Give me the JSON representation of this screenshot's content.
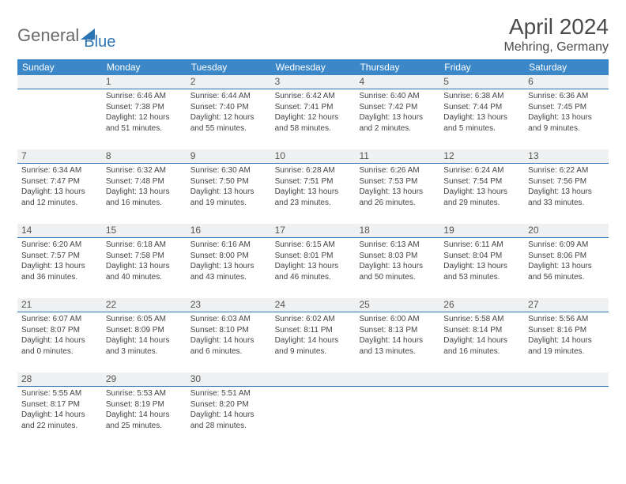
{
  "logo": {
    "part1": "General",
    "part2": "Blue"
  },
  "title": "April 2024",
  "location": "Mehring, Germany",
  "colors": {
    "header_bg": "#3b87c8",
    "header_text": "#ffffff",
    "daynum_bg": "#eef0f2",
    "daynum_border": "#2d74b5",
    "text": "#444444",
    "logo_blue": "#2d74b5",
    "background": "#ffffff"
  },
  "fonts": {
    "title_pt": 28,
    "location_pt": 16,
    "head_pt": 12,
    "daynum_pt": 12,
    "body_pt": 10
  },
  "daynames": [
    "Sunday",
    "Monday",
    "Tuesday",
    "Wednesday",
    "Thursday",
    "Friday",
    "Saturday"
  ],
  "weeks": [
    {
      "nums": [
        "",
        "1",
        "2",
        "3",
        "4",
        "5",
        "6"
      ],
      "cells": [
        {
          "sunrise": "",
          "sunset": "",
          "daylight": ""
        },
        {
          "sunrise": "Sunrise: 6:46 AM",
          "sunset": "Sunset: 7:38 PM",
          "daylight": "Daylight: 12 hours and 51 minutes."
        },
        {
          "sunrise": "Sunrise: 6:44 AM",
          "sunset": "Sunset: 7:40 PM",
          "daylight": "Daylight: 12 hours and 55 minutes."
        },
        {
          "sunrise": "Sunrise: 6:42 AM",
          "sunset": "Sunset: 7:41 PM",
          "daylight": "Daylight: 12 hours and 58 minutes."
        },
        {
          "sunrise": "Sunrise: 6:40 AM",
          "sunset": "Sunset: 7:42 PM",
          "daylight": "Daylight: 13 hours and 2 minutes."
        },
        {
          "sunrise": "Sunrise: 6:38 AM",
          "sunset": "Sunset: 7:44 PM",
          "daylight": "Daylight: 13 hours and 5 minutes."
        },
        {
          "sunrise": "Sunrise: 6:36 AM",
          "sunset": "Sunset: 7:45 PM",
          "daylight": "Daylight: 13 hours and 9 minutes."
        }
      ]
    },
    {
      "nums": [
        "7",
        "8",
        "9",
        "10",
        "11",
        "12",
        "13"
      ],
      "cells": [
        {
          "sunrise": "Sunrise: 6:34 AM",
          "sunset": "Sunset: 7:47 PM",
          "daylight": "Daylight: 13 hours and 12 minutes."
        },
        {
          "sunrise": "Sunrise: 6:32 AM",
          "sunset": "Sunset: 7:48 PM",
          "daylight": "Daylight: 13 hours and 16 minutes."
        },
        {
          "sunrise": "Sunrise: 6:30 AM",
          "sunset": "Sunset: 7:50 PM",
          "daylight": "Daylight: 13 hours and 19 minutes."
        },
        {
          "sunrise": "Sunrise: 6:28 AM",
          "sunset": "Sunset: 7:51 PM",
          "daylight": "Daylight: 13 hours and 23 minutes."
        },
        {
          "sunrise": "Sunrise: 6:26 AM",
          "sunset": "Sunset: 7:53 PM",
          "daylight": "Daylight: 13 hours and 26 minutes."
        },
        {
          "sunrise": "Sunrise: 6:24 AM",
          "sunset": "Sunset: 7:54 PM",
          "daylight": "Daylight: 13 hours and 29 minutes."
        },
        {
          "sunrise": "Sunrise: 6:22 AM",
          "sunset": "Sunset: 7:56 PM",
          "daylight": "Daylight: 13 hours and 33 minutes."
        }
      ]
    },
    {
      "nums": [
        "14",
        "15",
        "16",
        "17",
        "18",
        "19",
        "20"
      ],
      "cells": [
        {
          "sunrise": "Sunrise: 6:20 AM",
          "sunset": "Sunset: 7:57 PM",
          "daylight": "Daylight: 13 hours and 36 minutes."
        },
        {
          "sunrise": "Sunrise: 6:18 AM",
          "sunset": "Sunset: 7:58 PM",
          "daylight": "Daylight: 13 hours and 40 minutes."
        },
        {
          "sunrise": "Sunrise: 6:16 AM",
          "sunset": "Sunset: 8:00 PM",
          "daylight": "Daylight: 13 hours and 43 minutes."
        },
        {
          "sunrise": "Sunrise: 6:15 AM",
          "sunset": "Sunset: 8:01 PM",
          "daylight": "Daylight: 13 hours and 46 minutes."
        },
        {
          "sunrise": "Sunrise: 6:13 AM",
          "sunset": "Sunset: 8:03 PM",
          "daylight": "Daylight: 13 hours and 50 minutes."
        },
        {
          "sunrise": "Sunrise: 6:11 AM",
          "sunset": "Sunset: 8:04 PM",
          "daylight": "Daylight: 13 hours and 53 minutes."
        },
        {
          "sunrise": "Sunrise: 6:09 AM",
          "sunset": "Sunset: 8:06 PM",
          "daylight": "Daylight: 13 hours and 56 minutes."
        }
      ]
    },
    {
      "nums": [
        "21",
        "22",
        "23",
        "24",
        "25",
        "26",
        "27"
      ],
      "cells": [
        {
          "sunrise": "Sunrise: 6:07 AM",
          "sunset": "Sunset: 8:07 PM",
          "daylight": "Daylight: 14 hours and 0 minutes."
        },
        {
          "sunrise": "Sunrise: 6:05 AM",
          "sunset": "Sunset: 8:09 PM",
          "daylight": "Daylight: 14 hours and 3 minutes."
        },
        {
          "sunrise": "Sunrise: 6:03 AM",
          "sunset": "Sunset: 8:10 PM",
          "daylight": "Daylight: 14 hours and 6 minutes."
        },
        {
          "sunrise": "Sunrise: 6:02 AM",
          "sunset": "Sunset: 8:11 PM",
          "daylight": "Daylight: 14 hours and 9 minutes."
        },
        {
          "sunrise": "Sunrise: 6:00 AM",
          "sunset": "Sunset: 8:13 PM",
          "daylight": "Daylight: 14 hours and 13 minutes."
        },
        {
          "sunrise": "Sunrise: 5:58 AM",
          "sunset": "Sunset: 8:14 PM",
          "daylight": "Daylight: 14 hours and 16 minutes."
        },
        {
          "sunrise": "Sunrise: 5:56 AM",
          "sunset": "Sunset: 8:16 PM",
          "daylight": "Daylight: 14 hours and 19 minutes."
        }
      ]
    },
    {
      "nums": [
        "28",
        "29",
        "30",
        "",
        "",
        "",
        ""
      ],
      "cells": [
        {
          "sunrise": "Sunrise: 5:55 AM",
          "sunset": "Sunset: 8:17 PM",
          "daylight": "Daylight: 14 hours and 22 minutes."
        },
        {
          "sunrise": "Sunrise: 5:53 AM",
          "sunset": "Sunset: 8:19 PM",
          "daylight": "Daylight: 14 hours and 25 minutes."
        },
        {
          "sunrise": "Sunrise: 5:51 AM",
          "sunset": "Sunset: 8:20 PM",
          "daylight": "Daylight: 14 hours and 28 minutes."
        },
        {
          "sunrise": "",
          "sunset": "",
          "daylight": ""
        },
        {
          "sunrise": "",
          "sunset": "",
          "daylight": ""
        },
        {
          "sunrise": "",
          "sunset": "",
          "daylight": ""
        },
        {
          "sunrise": "",
          "sunset": "",
          "daylight": ""
        }
      ]
    }
  ]
}
